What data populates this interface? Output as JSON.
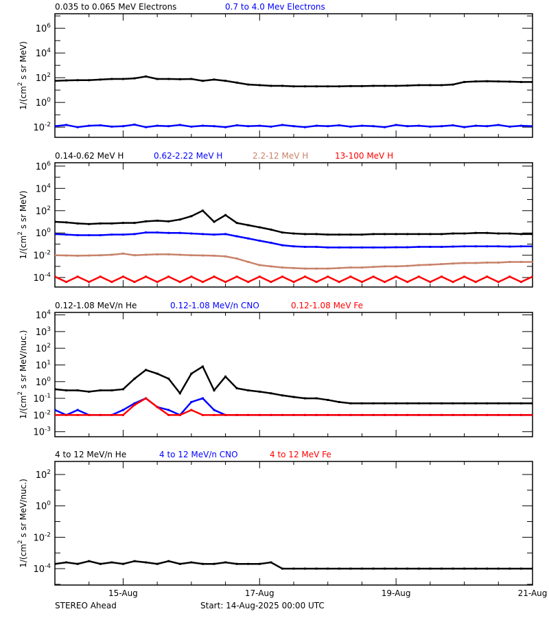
{
  "footer": {
    "spacecraft": "STEREO Ahead",
    "start": "Start: 14-Aug-2025 00:00 UTC"
  },
  "x_axis": {
    "xlim": [
      "14-Aug 00:00",
      "21-Aug 00:00"
    ],
    "tick_labels": [
      "15-Aug",
      "17-Aug",
      "19-Aug",
      "21-Aug"
    ],
    "tick_days": [
      1,
      3,
      5,
      7
    ],
    "minor_step_hours": 12
  },
  "chart_data": [
    {
      "type": "scatter",
      "yscale": "log",
      "ylabel": "1/(cm^2 s sr MeV)",
      "ylim": [
        0.0015,
        15000000
      ],
      "ytick_exponents": [
        6,
        4,
        2,
        0,
        -2
      ],
      "yminor_exponents": [
        7,
        5,
        3,
        1,
        -1
      ],
      "x_step_hours": 4,
      "series": [
        {
          "name": "0.035 to 0.065 MeV Electrons",
          "color": "#000000",
          "values": [
            56,
            60,
            63,
            63,
            71,
            79,
            79,
            89,
            126,
            79,
            79,
            76,
            79,
            56,
            71,
            56,
            40,
            28,
            25,
            22,
            22,
            20,
            20,
            20,
            20,
            20,
            21,
            21,
            22,
            22,
            22,
            23,
            25,
            25,
            25,
            28,
            45,
            50,
            52,
            50,
            48,
            45,
            45
          ]
        },
        {
          "name": "0.7 to 4.0 Mev Electrons",
          "color": "#0000ff",
          "values": [
            0.012,
            0.015,
            0.01,
            0.013,
            0.014,
            0.011,
            0.012,
            0.016,
            0.01,
            0.013,
            0.012,
            0.015,
            0.011,
            0.013,
            0.012,
            0.01,
            0.014,
            0.012,
            0.013,
            0.011,
            0.015,
            0.012,
            0.01,
            0.013,
            0.012,
            0.014,
            0.011,
            0.013,
            0.012,
            0.01,
            0.015,
            0.012,
            0.013,
            0.011,
            0.012,
            0.014,
            0.01,
            0.013,
            0.012,
            0.015,
            0.011,
            0.013,
            0.012
          ]
        }
      ]
    },
    {
      "type": "scatter",
      "yscale": "log",
      "ylabel": "1/(cm^2 s sr MeV)",
      "ylim": [
        1.4e-05,
        2000000
      ],
      "ytick_exponents": [
        6,
        4,
        2,
        0,
        -2,
        -4
      ],
      "yminor_exponents": [
        5,
        3,
        1,
        -1,
        -3
      ],
      "x_step_hours": 4,
      "series": [
        {
          "name": "0.14-0.62 MeV H",
          "color": "#000000",
          "values": [
            10,
            8.9,
            7.1,
            6.3,
            7.1,
            7.1,
            7.9,
            7.9,
            11,
            12.6,
            11,
            16,
            32,
            100,
            10,
            40,
            7.9,
            5,
            3.2,
            2,
            1.1,
            0.89,
            0.79,
            0.79,
            0.71,
            0.71,
            0.71,
            0.71,
            0.79,
            0.79,
            0.79,
            0.79,
            0.79,
            0.79,
            0.79,
            0.89,
            0.89,
            1.0,
            1.0,
            0.89,
            0.89,
            0.79,
            0.79
          ]
        },
        {
          "name": "0.62-2.22 MeV H",
          "color": "#0000ff",
          "values": [
            0.79,
            0.71,
            0.63,
            0.63,
            0.63,
            0.71,
            0.71,
            0.79,
            1.1,
            1.1,
            1.0,
            1.0,
            0.89,
            0.79,
            0.71,
            0.79,
            0.5,
            0.32,
            0.2,
            0.13,
            0.079,
            0.063,
            0.056,
            0.056,
            0.05,
            0.05,
            0.05,
            0.05,
            0.05,
            0.05,
            0.052,
            0.052,
            0.056,
            0.056,
            0.056,
            0.06,
            0.063,
            0.063,
            0.063,
            0.063,
            0.06,
            0.063,
            0.063
          ]
        },
        {
          "name": "2.2-12 MeV H",
          "color": "#c8826a",
          "values": [
            0.01,
            0.0095,
            0.009,
            0.0095,
            0.01,
            0.011,
            0.014,
            0.01,
            0.011,
            0.012,
            0.012,
            0.011,
            0.01,
            0.0095,
            0.009,
            0.0079,
            0.005,
            0.0025,
            0.0013,
            0.001,
            0.00079,
            0.00071,
            0.00063,
            0.00063,
            0.00063,
            0.00071,
            0.00079,
            0.00079,
            0.00089,
            0.001,
            0.001,
            0.0011,
            0.0013,
            0.0014,
            0.0016,
            0.0018,
            0.002,
            0.002,
            0.0022,
            0.0022,
            0.0025,
            0.0025,
            0.0025
          ]
        },
        {
          "name": "13-100 MeV H",
          "color": "#ff0000",
          "values": [
            0.00012,
            4e-05,
            0.00012,
            4e-05,
            0.00012,
            4e-05,
            0.00012,
            4e-05,
            0.00012,
            4e-05,
            0.00012,
            4e-05,
            0.00012,
            4e-05,
            0.00012,
            4e-05,
            0.00012,
            4e-05,
            0.00012,
            4e-05,
            0.00012,
            4e-05,
            0.00012,
            4e-05,
            0.00012,
            4e-05,
            0.00012,
            4e-05,
            0.00012,
            4e-05,
            0.00012,
            4e-05,
            0.00012,
            4e-05,
            0.00012,
            4e-05,
            0.00012,
            4e-05,
            0.00012,
            4e-05,
            0.00012,
            4e-05,
            0.00012
          ]
        }
      ]
    },
    {
      "type": "scatter",
      "yscale": "log",
      "ylabel": "1/(cm^2 s sr MeV/nuc.)",
      "ylim": [
        0.0005,
        14000
      ],
      "ytick_exponents": [
        4,
        3,
        2,
        1,
        0,
        -1,
        -2,
        -3
      ],
      "yminor_exponents": [],
      "x_step_hours": 4,
      "series": [
        {
          "name": "0.12-1.08 MeV/n He",
          "color": "#000000",
          "values": [
            0.35,
            0.3,
            0.3,
            0.25,
            0.3,
            0.3,
            0.35,
            1.5,
            5,
            3,
            1.5,
            0.2,
            3,
            8,
            0.3,
            2,
            0.4,
            0.3,
            0.25,
            0.2,
            0.15,
            0.12,
            0.1,
            0.1,
            0.08,
            0.06,
            0.05,
            0.05,
            0.05,
            0.05,
            0.05,
            0.05,
            0.05,
            0.05,
            0.05,
            0.05,
            0.05,
            0.05,
            0.05,
            0.05,
            0.05,
            0.05,
            0.05
          ]
        },
        {
          "name": "0.12-1.08 MeV/n CNO",
          "color": "#0000ff",
          "values": [
            0.02,
            0.01,
            0.02,
            0.01,
            0.01,
            0.01,
            0.02,
            0.05,
            0.1,
            0.03,
            0.02,
            0.01,
            0.06,
            0.1,
            0.02,
            0.01,
            0.01,
            0.01,
            0.01,
            0.01,
            0.01,
            0.01,
            0.01,
            0.01,
            0.01,
            0.01,
            0.01,
            0.01,
            0.01,
            0.01,
            0.01,
            0.01,
            0.01,
            0.01,
            0.01,
            0.01,
            0.01,
            0.01,
            0.01,
            0.01,
            0.01,
            0.01,
            0.01
          ]
        },
        {
          "name": "0.12-1.08 MeV Fe",
          "color": "#ff0000",
          "values": [
            0.01,
            0.01,
            0.01,
            0.01,
            0.01,
            0.01,
            0.01,
            0.04,
            0.1,
            0.03,
            0.01,
            0.01,
            0.02,
            0.01,
            0.01,
            0.01,
            0.01,
            0.01,
            0.01,
            0.01,
            0.01,
            0.01,
            0.01,
            0.01,
            0.01,
            0.01,
            0.01,
            0.01,
            0.01,
            0.01,
            0.01,
            0.01,
            0.01,
            0.01,
            0.01,
            0.01,
            0.01,
            0.01,
            0.01,
            0.01,
            0.01,
            0.01,
            0.01
          ]
        }
      ]
    },
    {
      "type": "scatter",
      "yscale": "log",
      "ylabel": "1/(cm^2 s sr MeV/nuc.)",
      "ylim": [
        9e-06,
        680
      ],
      "ytick_exponents": [
        2,
        0,
        -2,
        -4
      ],
      "yminor_exponents": [
        1,
        -1,
        -3,
        -5
      ],
      "x_step_hours": 4,
      "series": [
        {
          "name": "4 to 12 MeV/n He",
          "color": "#000000",
          "values": [
            0.0002,
            0.00025,
            0.0002,
            0.0003,
            0.0002,
            0.00025,
            0.0002,
            0.0003,
            0.00025,
            0.0002,
            0.0003,
            0.0002,
            0.00025,
            0.0002,
            0.0002,
            0.00025,
            0.0002,
            0.0002,
            0.0002,
            0.00025,
            0.0001,
            0.0001,
            0.0001,
            0.0001,
            0.0001,
            0.0001,
            0.0001,
            0.0001,
            0.0001,
            0.0001,
            0.0001,
            0.0001,
            0.0001,
            0.0001,
            0.0001,
            0.0001,
            0.0001,
            0.0001,
            0.0001,
            0.0001,
            0.0001,
            0.0001,
            0.0001
          ]
        },
        {
          "name": "4 to 12 MeV/n CNO",
          "color": "#0000ff",
          "values": []
        },
        {
          "name": "4 to 12 MeV Fe",
          "color": "#ff0000",
          "values": []
        }
      ]
    }
  ]
}
